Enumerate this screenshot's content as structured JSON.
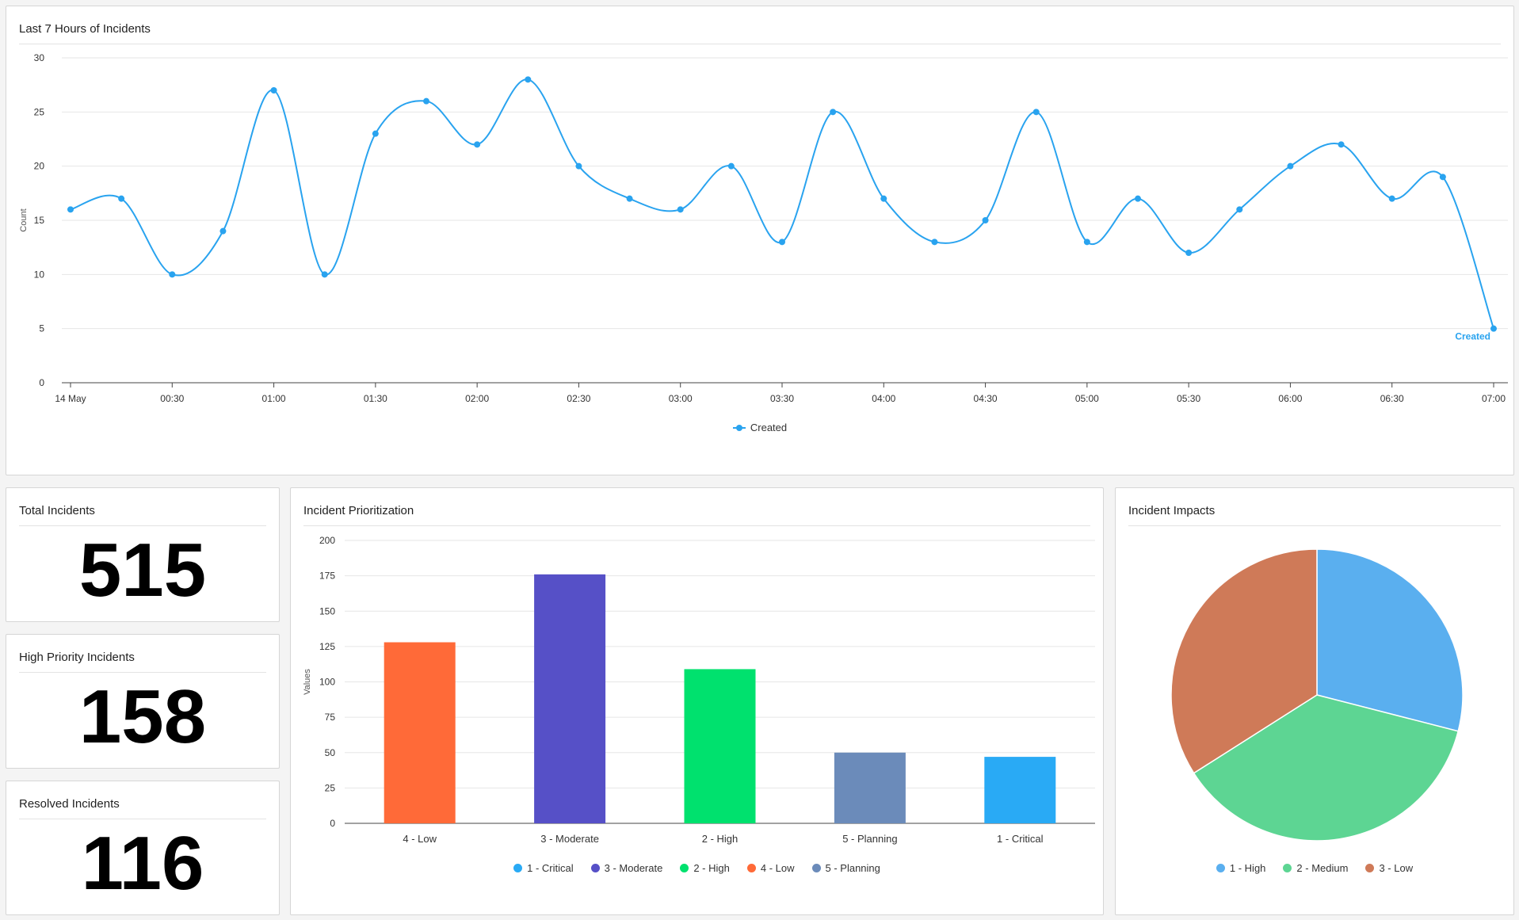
{
  "line_card": {
    "title": "Last 7 Hours of Incidents",
    "legend_label": "Created",
    "line_label": "Created"
  },
  "stat_cards": [
    {
      "title": "Total Incidents",
      "value": "515"
    },
    {
      "title": "High Priority Incidents",
      "value": "158"
    },
    {
      "title": "Resolved Incidents",
      "value": "116"
    }
  ],
  "bar_card": {
    "title": "Incident Prioritization",
    "legend": [
      {
        "label": "1 - Critical",
        "color": "#29aaf5"
      },
      {
        "label": "3 - Moderate",
        "color": "#5650c7"
      },
      {
        "label": "2 - High",
        "color": "#00e16e"
      },
      {
        "label": "4 - Low",
        "color": "#ff6a38"
      },
      {
        "label": "5 - Planning",
        "color": "#6b8bba"
      }
    ]
  },
  "pie_card": {
    "title": "Incident Impacts",
    "legend": [
      {
        "label": "1 - High",
        "color": "#5aafef"
      },
      {
        "label": "2 - Medium",
        "color": "#5dd593"
      },
      {
        "label": "3 - Low",
        "color": "#cf7a58"
      }
    ]
  },
  "chart_data": [
    {
      "type": "line",
      "title": "Last 7 Hours of Incidents",
      "ylabel": "Count",
      "xlabel": "",
      "ylim": [
        0,
        30
      ],
      "yticks": [
        0,
        5,
        10,
        15,
        20,
        25,
        30
      ],
      "x_tick_labels": [
        "14 May",
        "00:30",
        "01:00",
        "01:30",
        "02:00",
        "02:30",
        "03:00",
        "03:30",
        "04:00",
        "04:30",
        "05:00",
        "05:30",
        "06:00",
        "06:30",
        "07:00"
      ],
      "grid": true,
      "legend": "bottom",
      "color": "#29a3ef",
      "series": [
        {
          "name": "Created",
          "x": [
            "00:00",
            "00:15",
            "00:30",
            "00:45",
            "01:00",
            "01:15",
            "01:30",
            "01:45",
            "02:00",
            "02:15",
            "02:30",
            "02:45",
            "03:00",
            "03:15",
            "03:30",
            "03:45",
            "04:00",
            "04:15",
            "04:30",
            "04:45",
            "05:00",
            "05:15",
            "05:30",
            "05:45",
            "06:00",
            "06:15",
            "06:30",
            "06:45",
            "07:00"
          ],
          "values": [
            16,
            17,
            10,
            14,
            27,
            10,
            23,
            26,
            22,
            28,
            20,
            17,
            16,
            20,
            13,
            25,
            17,
            13,
            15,
            25,
            13,
            17,
            12,
            16,
            20,
            22,
            17,
            19,
            5
          ]
        }
      ]
    },
    {
      "type": "bar",
      "title": "Incident Prioritization",
      "ylabel": "Values",
      "xlabel": "",
      "ylim": [
        0,
        200
      ],
      "yticks": [
        0,
        25,
        50,
        75,
        100,
        125,
        150,
        175,
        200
      ],
      "grid": true,
      "legend": "bottom",
      "categories": [
        "4 - Low",
        "3 - Moderate",
        "2 - High",
        "5 - Planning",
        "1 - Critical"
      ],
      "values": [
        128,
        176,
        109,
        50,
        47
      ],
      "colors": [
        "#ff6a38",
        "#5650c7",
        "#00e16e",
        "#6b8bba",
        "#29aaf5"
      ]
    },
    {
      "type": "pie",
      "title": "Incident Impacts",
      "legend": "bottom",
      "categories": [
        "1 - High",
        "2 - Medium",
        "3 - Low"
      ],
      "values": [
        29,
        37,
        34
      ],
      "colors": [
        "#5aafef",
        "#5dd593",
        "#cf7a58"
      ]
    }
  ]
}
